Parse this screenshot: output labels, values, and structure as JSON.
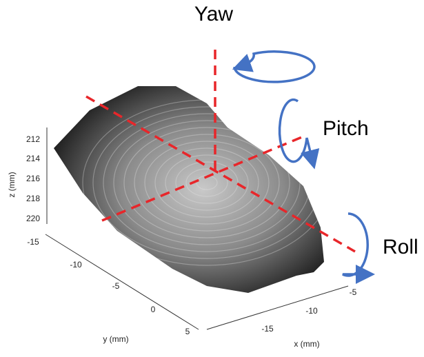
{
  "rotations": {
    "yaw": "Yaw",
    "pitch": "Pitch",
    "roll": "Roll"
  },
  "z_axis": {
    "label": "z (mm)",
    "ticks": [
      "212",
      "214",
      "216",
      "218",
      "220"
    ]
  },
  "y_axis": {
    "label": "y (mm)",
    "ticks": [
      "-15",
      "-10",
      "-5",
      "0",
      "5"
    ]
  },
  "x_axis": {
    "label": "x (mm)",
    "ticks": [
      "-5",
      "-10",
      "-15"
    ]
  }
}
